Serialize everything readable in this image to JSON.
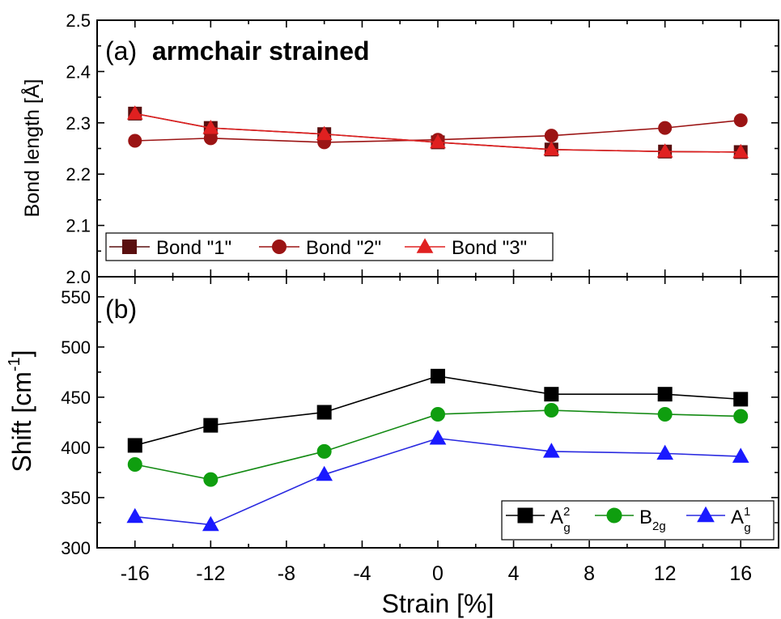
{
  "chart_data": [
    {
      "type": "line",
      "panel_label": "(a)",
      "title": "armchair strained",
      "ylabel": "Bond length [Å]",
      "xlim": [
        -18,
        18
      ],
      "ylim": [
        2.0,
        2.5
      ],
      "x_ticks": [
        -16,
        -12,
        -8,
        -4,
        0,
        4,
        8,
        12,
        16
      ],
      "y_ticks": [
        2.0,
        2.1,
        2.2,
        2.3,
        2.4,
        2.5
      ],
      "y_tick_labels": [
        "2.0",
        "2.1",
        "2.2",
        "2.3",
        "2.4",
        "2.5"
      ],
      "grid": false,
      "legend_position": "bottom-left",
      "x": [
        -16,
        -12,
        -6,
        0,
        6,
        12,
        16
      ],
      "series": [
        {
          "name": "Bond \"1\"",
          "marker": "square",
          "color": "#5a0f0f",
          "values": [
            2.318,
            2.29,
            2.278,
            2.262,
            2.248,
            2.244,
            2.243
          ]
        },
        {
          "name": "Bond \"2\"",
          "marker": "circle",
          "color": "#9b1414",
          "values": [
            2.265,
            2.27,
            2.262,
            2.267,
            2.275,
            2.29,
            2.305
          ]
        },
        {
          "name": "Bond \"3\"",
          "marker": "triangle",
          "color": "#e02020",
          "values": [
            2.318,
            2.29,
            2.278,
            2.262,
            2.248,
            2.244,
            2.243
          ]
        }
      ]
    },
    {
      "type": "line",
      "panel_label": "(b)",
      "xlabel": "Strain [%]",
      "ylabel": "Shift [cm⁻¹]",
      "xlim": [
        -18,
        18
      ],
      "ylim": [
        300,
        570
      ],
      "x_ticks": [
        -16,
        -12,
        -8,
        -4,
        0,
        4,
        8,
        12,
        16
      ],
      "x_tick_labels": [
        "-16",
        "-12",
        "-8",
        "-4",
        "0",
        "4",
        "8",
        "12",
        "16"
      ],
      "y_ticks": [
        300,
        350,
        400,
        450,
        500,
        550
      ],
      "y_tick_labels": [
        "300",
        "350",
        "400",
        "450",
        "500",
        "550"
      ],
      "grid": false,
      "legend_position": "bottom-right",
      "x": [
        -16,
        -12,
        -6,
        0,
        6,
        12,
        16
      ],
      "series": [
        {
          "name": "A",
          "sub": "g",
          "sup": "2",
          "marker": "square",
          "color": "#000000",
          "line_color": "#000000",
          "values": [
            402,
            422,
            435,
            471,
            453,
            453,
            448
          ]
        },
        {
          "name": "B",
          "sub": "2g",
          "sup": "",
          "marker": "circle",
          "color": "#0f9e0f",
          "line_color": "#138a13",
          "values": [
            383,
            368,
            396,
            433,
            437,
            433,
            431
          ]
        },
        {
          "name": "A",
          "sub": "g",
          "sup": "1",
          "marker": "triangle",
          "color": "#1a1aff",
          "line_color": "#2a2ae0",
          "values": [
            331,
            323,
            373,
            409,
            396,
            394,
            391
          ]
        }
      ]
    }
  ]
}
